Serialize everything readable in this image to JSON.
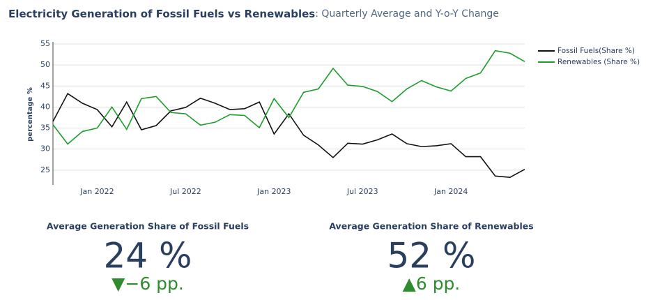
{
  "chart_data": [
    {
      "type": "line",
      "title": "Electricity Generation of Fossil Fuels vs Renewables",
      "subtitle": ": Quarterly Average and Y-o-Y Change",
      "y_label": "percentage %",
      "x": [
        "2021-10",
        "2021-11",
        "2021-12",
        "2022-01",
        "2022-02",
        "2022-03",
        "2022-04",
        "2022-05",
        "2022-06",
        "2022-07",
        "2022-08",
        "2022-09",
        "2022-10",
        "2022-11",
        "2022-12",
        "2023-01",
        "2023-02",
        "2023-03",
        "2023-04",
        "2023-05",
        "2023-06",
        "2023-07",
        "2023-08",
        "2023-09",
        "2023-10",
        "2023-11",
        "2023-12",
        "2024-01",
        "2024-02",
        "2024-03",
        "2024-04",
        "2024-05",
        "2024-06"
      ],
      "xlim": [
        "2021-10",
        "2024-06"
      ],
      "xticks": [
        {
          "value": "2022-01",
          "label": "Jan 2022"
        },
        {
          "value": "2022-07",
          "label": "Jul 2022"
        },
        {
          "value": "2023-01",
          "label": "Jan 2023"
        },
        {
          "value": "2023-07",
          "label": "Jul 2023"
        },
        {
          "value": "2024-01",
          "label": "Jan 2024"
        }
      ],
      "ylim": [
        21.5,
        55
      ],
      "yticks": [
        25,
        30,
        35,
        40,
        45,
        50,
        55
      ],
      "grid": true,
      "legend": "top-right",
      "series": [
        {
          "name": "Fossil Fuels(Share %)",
          "color": "#111111",
          "values": [
            36.6,
            43.2,
            40.9,
            39.4,
            35.3,
            41.2,
            34.6,
            35.6,
            39.1,
            39.9,
            42.1,
            40.9,
            39.4,
            39.6,
            41.2,
            33.6,
            38.4,
            33.3,
            31.0,
            28.0,
            31.4,
            31.2,
            32.2,
            33.6,
            31.3,
            30.6,
            30.8,
            31.3,
            28.2,
            28.2,
            23.6,
            23.3,
            25.2
          ]
        },
        {
          "name": "Renewables (Share %)",
          "color": "#1a9e2a",
          "values": [
            35.8,
            31.2,
            34.2,
            35.0,
            40.0,
            34.7,
            42.0,
            42.5,
            38.7,
            38.4,
            35.7,
            36.4,
            38.2,
            38.0,
            35.1,
            42.0,
            37.5,
            43.5,
            44.3,
            49.2,
            45.2,
            44.9,
            43.7,
            41.3,
            44.3,
            46.3,
            44.8,
            43.8,
            46.8,
            48.1,
            53.4,
            52.8,
            50.8
          ]
        }
      ]
    },
    {
      "type": "indicator",
      "title": "Average Generation Share of Fossil Fuels",
      "value": 24,
      "value_label": "24 %",
      "delta": -6,
      "delta_label": "▼−6 pp.",
      "color": "#2a3f5f",
      "delta_color": "#2e8b2e"
    },
    {
      "type": "indicator",
      "title": "Average Generation Share of Renewables",
      "value": 52,
      "value_label": "52 %",
      "delta": 6,
      "delta_label": "▲6 pp.",
      "color": "#2a3f5f",
      "delta_color": "#2e8b2e"
    }
  ]
}
